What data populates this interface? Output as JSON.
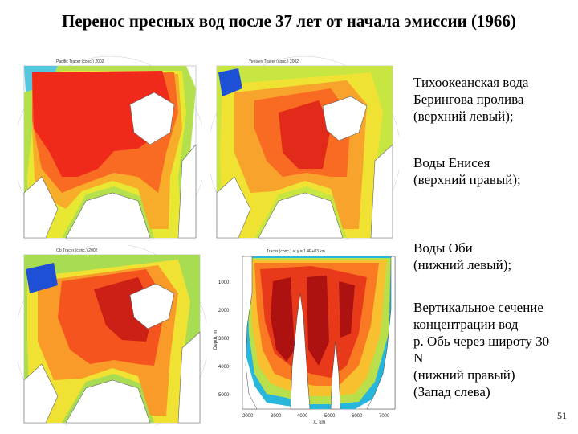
{
  "slide": {
    "title": "Перенос пресных вод после 37 лет от начала эмиссии (1966)",
    "page_number": "51"
  },
  "captions": {
    "pacific": [
      "Тихоокеанская вода",
      "Берингова пролива",
      "(верхний левый);"
    ],
    "yenisei": [
      "Воды Енисея",
      "(верхний правый);"
    ],
    "ob": [
      "Воды Оби",
      "(нижний левый);"
    ],
    "section": [
      "Вертикальное сечение",
      "концентрации вод",
      "р. Обь через широту 30",
      "N",
      "(нижний правый)",
      "(Запад слева)"
    ]
  },
  "panels": {
    "pacific": {
      "header": "Pacific Tracer (conc.) 2002",
      "colors": [
        "#f02a1a",
        "#f96a22",
        "#f7ad2a",
        "#e8e833",
        "#b4e04d",
        "#55c6e0"
      ]
    },
    "yenisei": {
      "header": "Yenisey Tracer (conc.) 2002",
      "colors": [
        "#e22a1a",
        "#f96a22",
        "#f8a32b",
        "#efe233",
        "#c7e642",
        "#1e50d6"
      ]
    },
    "ob": {
      "header": "Ob Tracer (conc.) 2002",
      "colors": [
        "#cc2016",
        "#f5541e",
        "#f99a29",
        "#f0e232",
        "#a8dc52",
        "#1e50d6"
      ]
    },
    "section": {
      "header": "Tracer (conc.) at y = 1.4E+03 km",
      "y_ticks": [
        "1000",
        "2000",
        "3000",
        "4000",
        "5000"
      ],
      "x_ticks": [
        "2000",
        "3000",
        "4000",
        "5000",
        "6000",
        "7000"
      ],
      "x_label": "X, km",
      "y_label": "Depth, m",
      "colors": [
        "#ae1210",
        "#e83a1a",
        "#f97a23",
        "#f8c02e",
        "#b9e04a",
        "#27b6dc"
      ]
    }
  }
}
